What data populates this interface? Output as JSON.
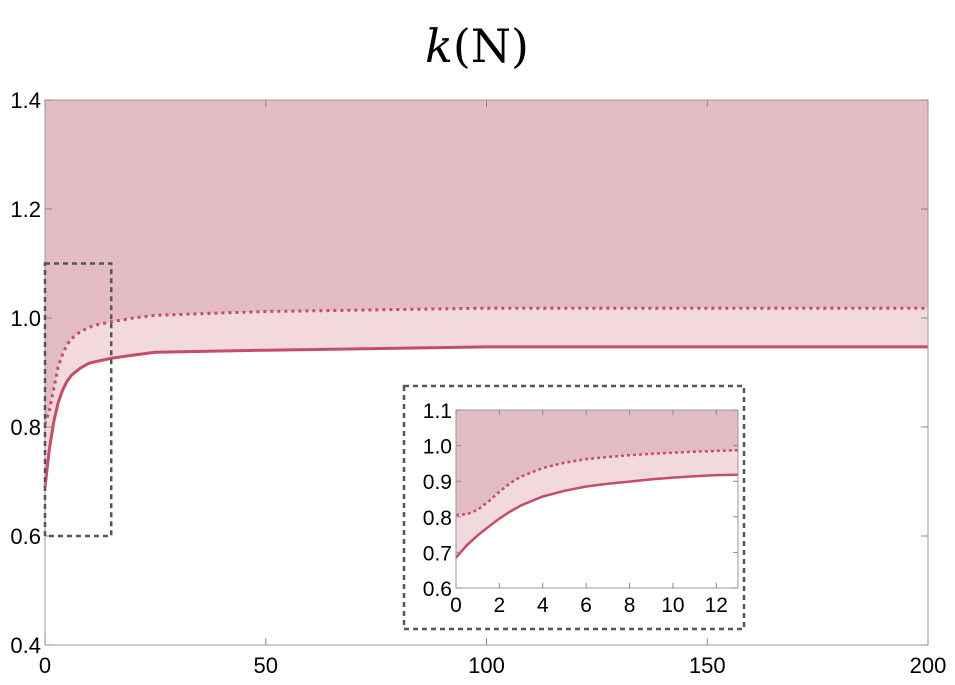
{
  "chart_data": [
    {
      "type": "area",
      "title": "k(N)",
      "xlabel": "",
      "ylabel": "",
      "xlim": [
        0,
        200
      ],
      "ylim": [
        0.4,
        1.4
      ],
      "x_ticks": [
        "0",
        "50",
        "100",
        "150",
        "200"
      ],
      "y_ticks": [
        "0.4",
        "0.6",
        "0.8",
        "1.0",
        "1.2",
        "1.4"
      ],
      "grid": false,
      "series": [
        {
          "style": "solid",
          "x": [
            0,
            1,
            2,
            3,
            4,
            5,
            6,
            8,
            10,
            12,
            15,
            20,
            25,
            50,
            100,
            150,
            200
          ],
          "y": [
            0.69,
            0.76,
            0.81,
            0.845,
            0.868,
            0.884,
            0.895,
            0.908,
            0.917,
            0.921,
            0.926,
            0.932,
            0.937,
            0.941,
            0.947,
            0.947,
            0.947
          ]
        },
        {
          "style": "dotted",
          "x": [
            0,
            1,
            2,
            3,
            4,
            5,
            6,
            8,
            10,
            12,
            15,
            20,
            25,
            50,
            100,
            150,
            200
          ],
          "y": [
            0.805,
            0.83,
            0.87,
            0.91,
            0.934,
            0.951,
            0.962,
            0.975,
            0.983,
            0.988,
            0.993,
            1.0,
            1.005,
            1.012,
            1.018,
            1.018,
            1.018
          ]
        }
      ],
      "colors": {
        "region_upper": "#e3bcc3",
        "region_band": "#f2d9dd",
        "line": "#c44d67",
        "box": "#555555"
      },
      "zoom_box": {
        "x": [
          0,
          15
        ],
        "y": [
          0.6,
          1.1
        ]
      }
    },
    {
      "type": "area",
      "xlim": [
        0,
        13
      ],
      "ylim": [
        0.6,
        1.1
      ],
      "x_ticks": [
        "0",
        "2",
        "4",
        "6",
        "8",
        "10",
        "12"
      ],
      "y_ticks": [
        "0.6",
        "0.7",
        "0.8",
        "0.9",
        "1.0",
        "1.1"
      ],
      "grid": false,
      "series": [
        {
          "style": "solid",
          "x": [
            0,
            0.5,
            1,
            1.5,
            2,
            2.5,
            3,
            4,
            5,
            6,
            7,
            8,
            9,
            10,
            11,
            12,
            13
          ],
          "y": [
            0.685,
            0.72,
            0.748,
            0.772,
            0.795,
            0.815,
            0.832,
            0.857,
            0.873,
            0.885,
            0.893,
            0.899,
            0.905,
            0.91,
            0.914,
            0.917,
            0.918
          ]
        },
        {
          "style": "dotted",
          "x": [
            0,
            0.5,
            1,
            1.5,
            2,
            2.5,
            3,
            4,
            5,
            6,
            7,
            8,
            9,
            10,
            11,
            12,
            13
          ],
          "y": [
            0.805,
            0.807,
            0.82,
            0.843,
            0.87,
            0.895,
            0.913,
            0.937,
            0.952,
            0.962,
            0.968,
            0.973,
            0.977,
            0.98,
            0.983,
            0.985,
            0.987
          ]
        }
      ]
    }
  ]
}
